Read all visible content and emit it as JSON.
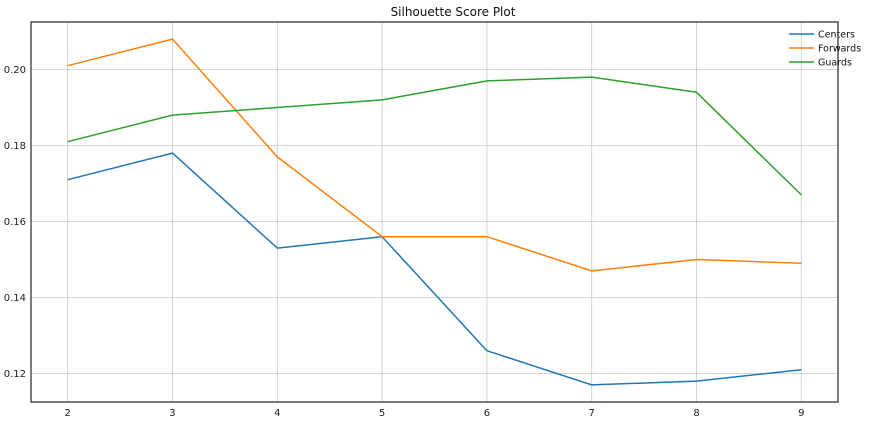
{
  "chart_data": {
    "type": "line",
    "title": "Silhouette Score Plot",
    "xlabel": "",
    "ylabel": "",
    "x": [
      2,
      3,
      4,
      5,
      6,
      7,
      8,
      9
    ],
    "xlim": [
      1.65,
      9.35
    ],
    "ylim": [
      0.1125,
      0.2125
    ],
    "xticks": [
      2,
      3,
      4,
      5,
      6,
      7,
      8,
      9
    ],
    "yticks": [
      0.12,
      0.14,
      0.16,
      0.18,
      0.2
    ],
    "ytick_labels": [
      "0.12",
      "0.14",
      "0.16",
      "0.18",
      "0.20"
    ],
    "grid": true,
    "legend_position": "top-right",
    "series": [
      {
        "name": "Centers",
        "color": "#1f77b4",
        "values": [
          0.171,
          0.178,
          0.153,
          0.156,
          0.126,
          0.117,
          0.118,
          0.121
        ]
      },
      {
        "name": "Forwards",
        "color": "#ff7f0e",
        "values": [
          0.201,
          0.208,
          0.177,
          0.156,
          0.156,
          0.147,
          0.15,
          0.149
        ]
      },
      {
        "name": "Guards",
        "color": "#2ca02c",
        "values": [
          0.181,
          0.188,
          0.19,
          0.192,
          0.197,
          0.198,
          0.194,
          0.167
        ]
      }
    ]
  }
}
